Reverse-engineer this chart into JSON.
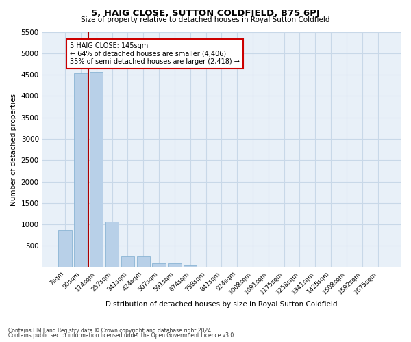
{
  "title": "5, HAIG CLOSE, SUTTON COLDFIELD, B75 6PJ",
  "subtitle": "Size of property relative to detached houses in Royal Sutton Coldfield",
  "xlabel": "Distribution of detached houses by size in Royal Sutton Coldfield",
  "ylabel": "Number of detached properties",
  "bar_color": "#b8d0e8",
  "bar_edge_color": "#8ab4d4",
  "categories": [
    "7sqm",
    "90sqm",
    "174sqm",
    "257sqm",
    "341sqm",
    "424sqm",
    "507sqm",
    "591sqm",
    "674sqm",
    "758sqm",
    "841sqm",
    "924sqm",
    "1008sqm",
    "1091sqm",
    "1175sqm",
    "1258sqm",
    "1341sqm",
    "1425sqm",
    "1508sqm",
    "1592sqm",
    "1675sqm"
  ],
  "values": [
    870,
    4540,
    4560,
    1060,
    270,
    270,
    85,
    85,
    45,
    0,
    0,
    0,
    0,
    0,
    0,
    0,
    0,
    0,
    0,
    0,
    0
  ],
  "ylim": [
    0,
    5500
  ],
  "yticks": [
    0,
    500,
    1000,
    1500,
    2000,
    2500,
    3000,
    3500,
    4000,
    4500,
    5000,
    5500
  ],
  "vline_position": 1.5,
  "property_label": "5 HAIG CLOSE: 145sqm",
  "annotation_line1": "← 64% of detached houses are smaller (4,406)",
  "annotation_line2": "35% of semi-detached houses are larger (2,418) →",
  "annotation_box_color": "#ffffff",
  "annotation_box_edge": "#cc0000",
  "vline_color": "#aa0000",
  "grid_color": "#c8d8e8",
  "bg_color": "#e8f0f8",
  "footnote1": "Contains HM Land Registry data © Crown copyright and database right 2024.",
  "footnote2": "Contains public sector information licensed under the Open Government Licence v3.0."
}
